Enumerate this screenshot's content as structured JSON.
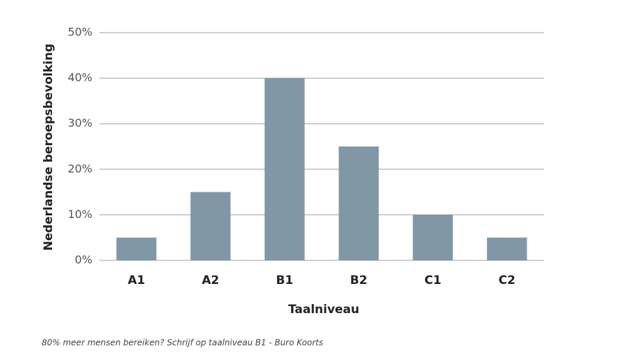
{
  "chart_data": {
    "type": "bar",
    "x_label": "Taalniveau",
    "y_label": "Nederlandse beroepsbevolking",
    "categories": [
      "A1",
      "A2",
      "B1",
      "B2",
      "C1",
      "C2"
    ],
    "values": [
      5,
      15,
      40,
      25,
      10,
      5
    ],
    "color": "#8098a6",
    "ylim": [
      0,
      50
    ],
    "yticks": [
      {
        "value": 0,
        "label": "0%"
      },
      {
        "value": 10,
        "label": "10%"
      },
      {
        "value": 20,
        "label": "20%"
      },
      {
        "value": 30,
        "label": "30%"
      },
      {
        "value": 40,
        "label": "40%"
      },
      {
        "value": 50,
        "label": "50%"
      }
    ],
    "grid": true,
    "caption": "80% meer mensen bereiken? Schrijf op taalniveau B1 - Buro Koorts"
  }
}
